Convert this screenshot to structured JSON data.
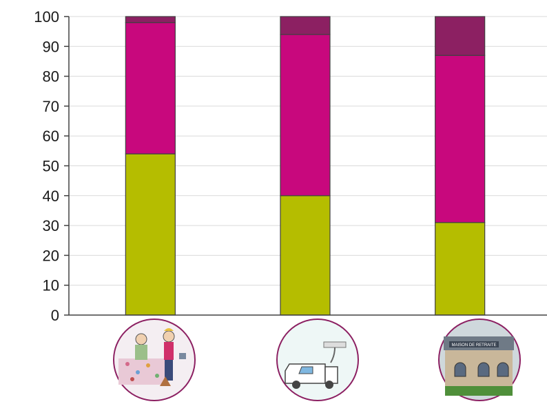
{
  "chart_data": {
    "type": "bar",
    "stacked": true,
    "categories": [
      "elderly-at-home-illustration",
      "delivery-van-illustration",
      "retirement-home-illustration"
    ],
    "series": [
      {
        "values": [
          54,
          40,
          31
        ],
        "color": "#b5bd00"
      },
      {
        "values": [
          44,
          54,
          56
        ],
        "color": "#c8087d"
      },
      {
        "values": [
          2,
          6,
          13
        ],
        "color": "#8c2062"
      }
    ],
    "ylim": [
      0,
      100
    ],
    "yticks": [
      0,
      10,
      20,
      30,
      40,
      50,
      60,
      70,
      80,
      90,
      100
    ],
    "grid": true,
    "legend": "none"
  },
  "illustrations": {
    "retirement_sign": "MAISON DE RETRAITE"
  }
}
